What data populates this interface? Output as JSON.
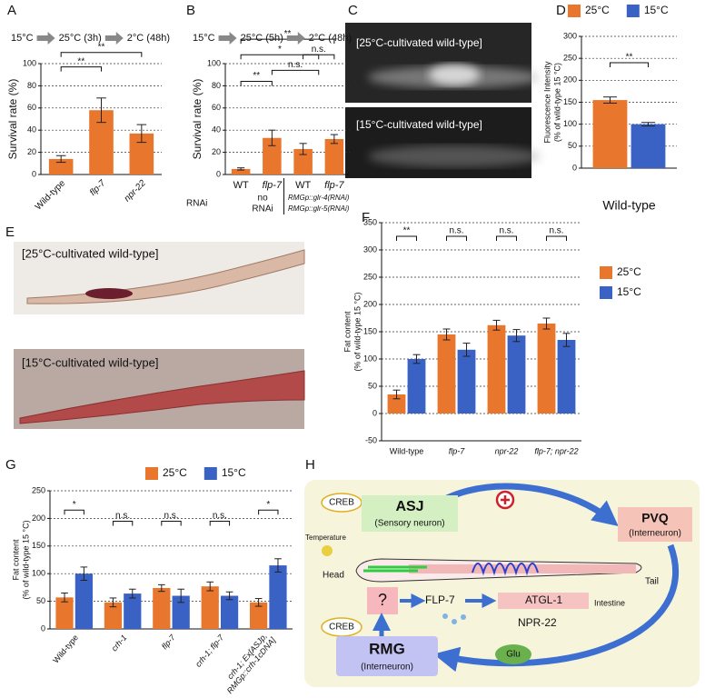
{
  "chart_data": [
    {
      "type": "bar",
      "panel": "A",
      "protocol": [
        "15°C",
        "25°C (3h)",
        "2°C (48h)"
      ],
      "ylabel": [
        "Survival rate (%)"
      ],
      "categories": [
        "Wild-type",
        "flp-7",
        "npr-22"
      ],
      "values": [
        14,
        58,
        37
      ],
      "errors": [
        3,
        11,
        8
      ],
      "color": "#e8762d",
      "ylim": [
        0,
        100
      ],
      "yticks": [
        0,
        20,
        40,
        60,
        80,
        100
      ],
      "grid": true,
      "annotations": [
        "**",
        "**"
      ]
    },
    {
      "type": "bar",
      "panel": "B",
      "protocol": [
        "15°C",
        "25°C (5h)",
        "2°C (48h)"
      ],
      "ylabel": [
        "Survival rate (%)"
      ],
      "categories": [
        "WT",
        "flp-7",
        "WT",
        "flp-7"
      ],
      "values": [
        5,
        33,
        23,
        32
      ],
      "errors": [
        1,
        7,
        5,
        4
      ],
      "color": "#e8762d",
      "row_label": "RNAi",
      "groups": [
        {
          "lines": [
            "no",
            "RNAi"
          ]
        },
        {
          "lines": [
            "RMGp::glr-4(RNAi)",
            "RMGp::glr-5(RNAi)"
          ]
        }
      ],
      "ylim": [
        0,
        100
      ],
      "yticks": [
        0,
        20,
        40,
        60,
        80,
        100
      ],
      "grid": true,
      "annotations": [
        "**",
        "n.s.",
        "*",
        "n.s.",
        "**"
      ]
    },
    {
      "type": "bar",
      "panel": "D",
      "ylabel": [
        "Fluorescence Intensity",
        "(% of wild-type 15 °C)"
      ],
      "categories": [
        "Wild-type"
      ],
      "series": [
        {
          "name": "25°C",
          "color": "#e8762d",
          "values": [
            155
          ],
          "errors": [
            7
          ]
        },
        {
          "name": "15°C",
          "color": "#3a62c4",
          "values": [
            100
          ],
          "errors": [
            4
          ]
        }
      ],
      "ylim": [
        0,
        300
      ],
      "yticks": [
        0,
        50,
        100,
        150,
        200,
        250,
        300
      ],
      "grid": true,
      "legend": "top",
      "annotations": [
        "**"
      ]
    },
    {
      "type": "bar",
      "panel": "F",
      "ylabel": [
        "Fat content",
        "(% of wild-type 15 °C)"
      ],
      "categories": [
        "Wild-type",
        "flp-7",
        "npr-22",
        "flp-7; npr-22"
      ],
      "series": [
        {
          "name": "25°C",
          "color": "#e8762d",
          "values": [
            35,
            145,
            162,
            165
          ],
          "errors": [
            8,
            10,
            9,
            10
          ]
        },
        {
          "name": "15°C",
          "color": "#3a62c4",
          "values": [
            100,
            117,
            143,
            135
          ],
          "errors": [
            8,
            12,
            11,
            12
          ]
        }
      ],
      "ylim": [
        -50,
        350
      ],
      "yticks": [
        -50,
        0,
        50,
        100,
        150,
        200,
        250,
        300,
        350
      ],
      "grid": true,
      "legend": "right",
      "annotations": [
        "**",
        "n.s.",
        "n.s.",
        "n.s."
      ]
    },
    {
      "type": "bar",
      "panel": "G",
      "ylabel": [
        "Fat content",
        "(% of wild-type 15 °C)"
      ],
      "categories": [
        "Wild-type",
        "crh-1",
        "flp-7",
        "crh-1; flp-7",
        "crh-1; Ex[ASJp, RMGp::crh-1cDNA]"
      ],
      "series": [
        {
          "name": "25°C",
          "color": "#e8762d",
          "values": [
            57,
            48,
            74,
            77,
            48
          ],
          "errors": [
            8,
            8,
            6,
            8,
            7
          ]
        },
        {
          "name": "15°C",
          "color": "#3a62c4",
          "values": [
            100,
            64,
            60,
            60,
            115
          ],
          "errors": [
            12,
            8,
            12,
            7,
            12
          ]
        }
      ],
      "ylim": [
        0,
        250
      ],
      "yticks": [
        0,
        50,
        100,
        150,
        200,
        250
      ],
      "grid": true,
      "legend": "top",
      "annotations": [
        "*",
        "n.s.",
        "n.s.",
        "n.s.",
        "*"
      ]
    }
  ],
  "micrographs": [
    {
      "panel": "C",
      "captions": [
        "[25°C-cultivated wild-type]",
        "[15°C-cultivated wild-type]"
      ]
    },
    {
      "panel": "E",
      "captions": [
        "[25°C-cultivated wild-type]",
        "[15°C-cultivated wild-type]"
      ]
    }
  ],
  "diagram": {
    "panel": "H",
    "labels": {
      "creb_top": "CREB",
      "asj": "ASJ",
      "asj_role": "(Sensory neuron)",
      "pvq": "PVQ",
      "pvq_role": "(Interneuron)",
      "temperature": "Temperature",
      "head": "Head",
      "tail": "Tail",
      "unknown": "?",
      "flp7": "FLP-7",
      "atgl1": "ATGL-1",
      "intestine": "Intestine",
      "npr22": "NPR-22",
      "glu": "Glu",
      "creb_bottom": "CREB",
      "rmg": "RMG",
      "rmg_role": "(Interneuron)"
    }
  }
}
